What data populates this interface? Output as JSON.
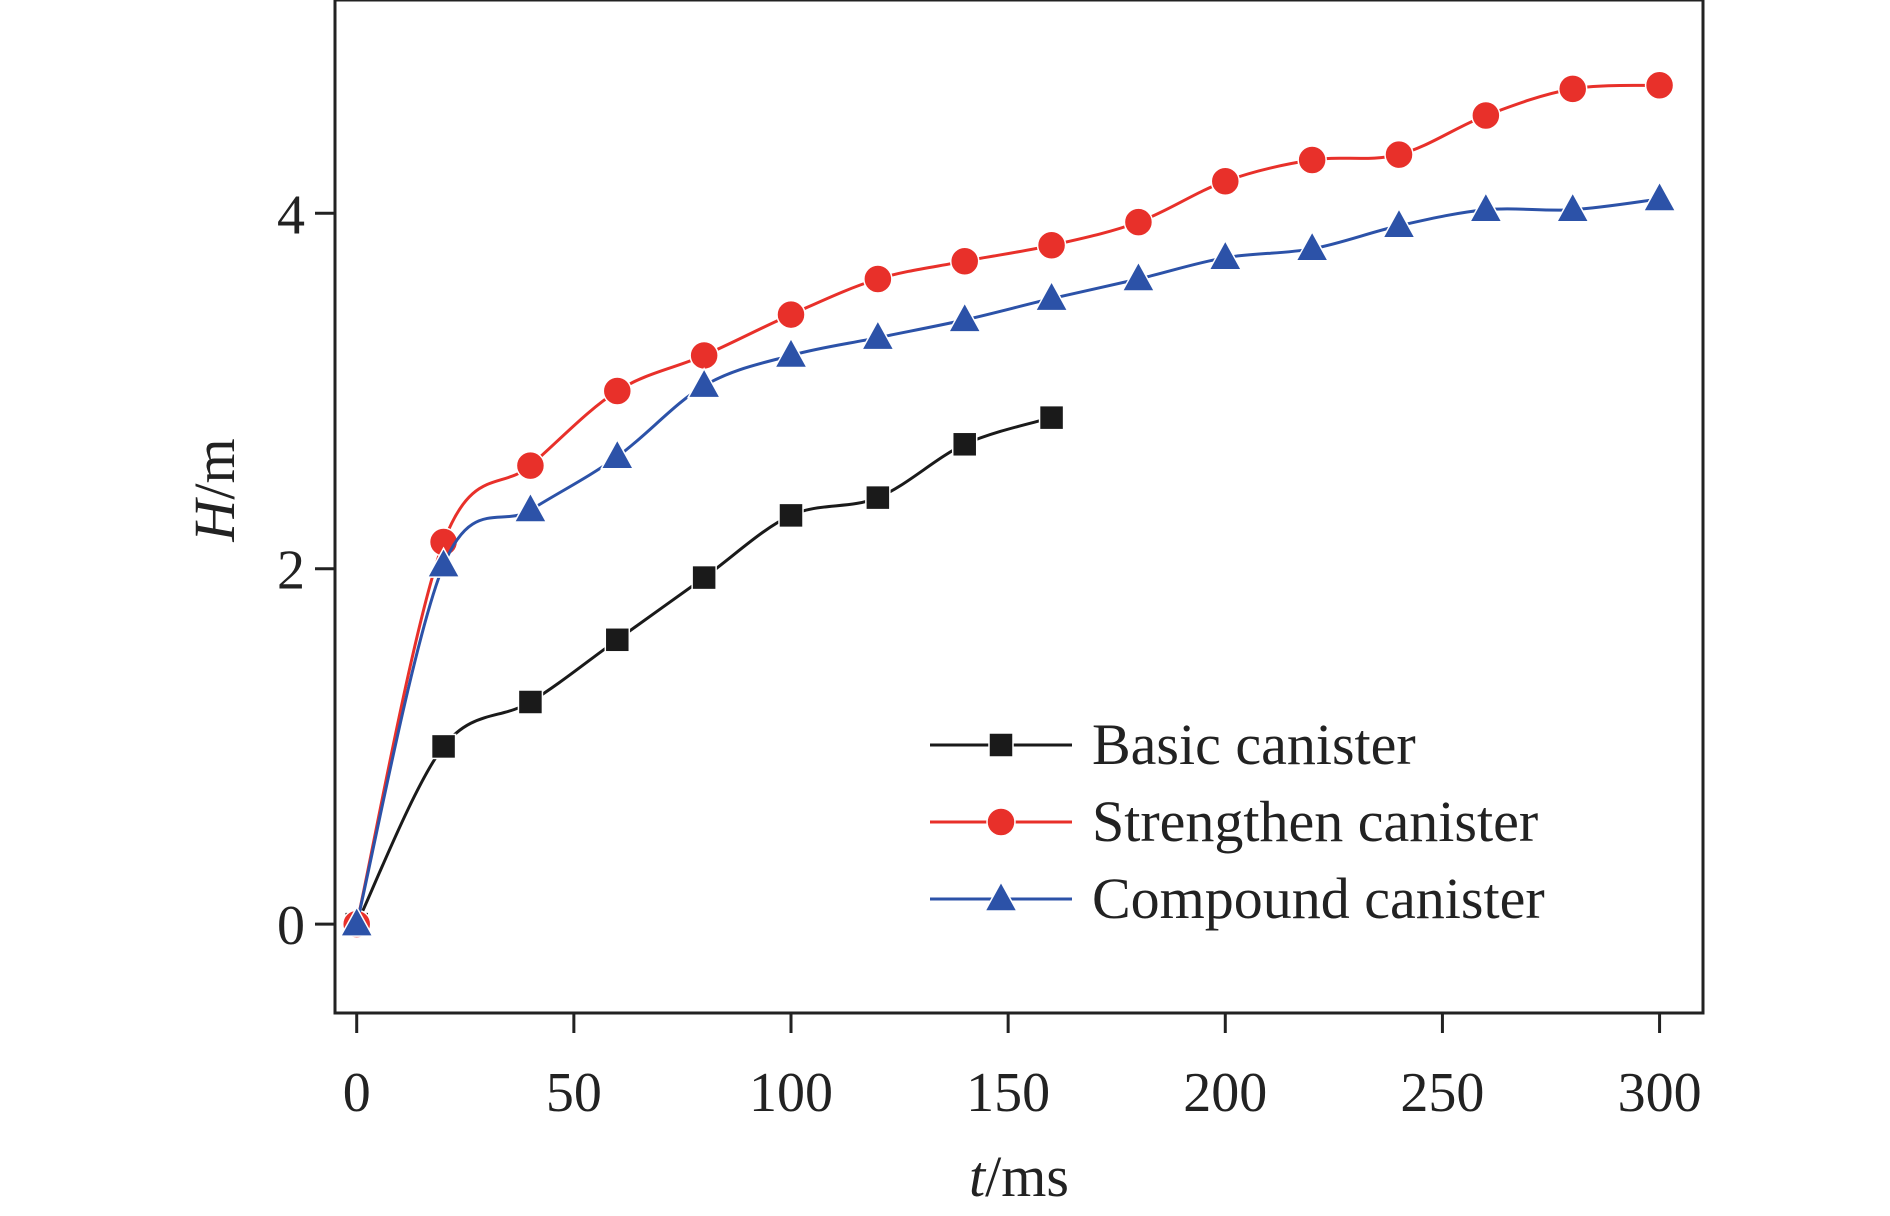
{
  "chart_data": {
    "type": "line",
    "title": "",
    "xlabel_var": "t",
    "xlabel_unit": "/ms",
    "ylabel_var": "H",
    "ylabel_unit": "/m",
    "xlim": [
      -5,
      310
    ],
    "ylim": [
      -0.5,
      5.2
    ],
    "xticks": [
      0,
      50,
      100,
      150,
      200,
      250,
      300
    ],
    "yticks": [
      0,
      2,
      4
    ],
    "grid": false,
    "legend_position": "bottom-right",
    "series": [
      {
        "name": "Basic canister",
        "color": "#1a1a1a",
        "marker": "square",
        "x": [
          0,
          20,
          40,
          60,
          80,
          100,
          120,
          140,
          160
        ],
        "y": [
          0,
          1.0,
          1.25,
          1.6,
          1.95,
          2.3,
          2.4,
          2.7,
          2.85
        ]
      },
      {
        "name": "Strengthen canister",
        "color": "#e8302a",
        "marker": "circle",
        "x": [
          0,
          20,
          40,
          60,
          80,
          100,
          120,
          140,
          160,
          180,
          200,
          220,
          240,
          260,
          280,
          300
        ],
        "y": [
          0,
          2.15,
          2.58,
          3.0,
          3.2,
          3.43,
          3.63,
          3.73,
          3.82,
          3.95,
          4.18,
          4.3,
          4.33,
          4.55,
          4.7,
          4.72
        ]
      },
      {
        "name": "Compound canister",
        "color": "#2c52a8",
        "marker": "triangle",
        "x": [
          0,
          20,
          40,
          60,
          80,
          100,
          120,
          140,
          160,
          180,
          200,
          220,
          240,
          260,
          280,
          300
        ],
        "y": [
          0,
          2.02,
          2.33,
          2.63,
          3.03,
          3.2,
          3.3,
          3.4,
          3.52,
          3.63,
          3.75,
          3.8,
          3.93,
          4.02,
          4.02,
          4.08
        ]
      }
    ]
  }
}
